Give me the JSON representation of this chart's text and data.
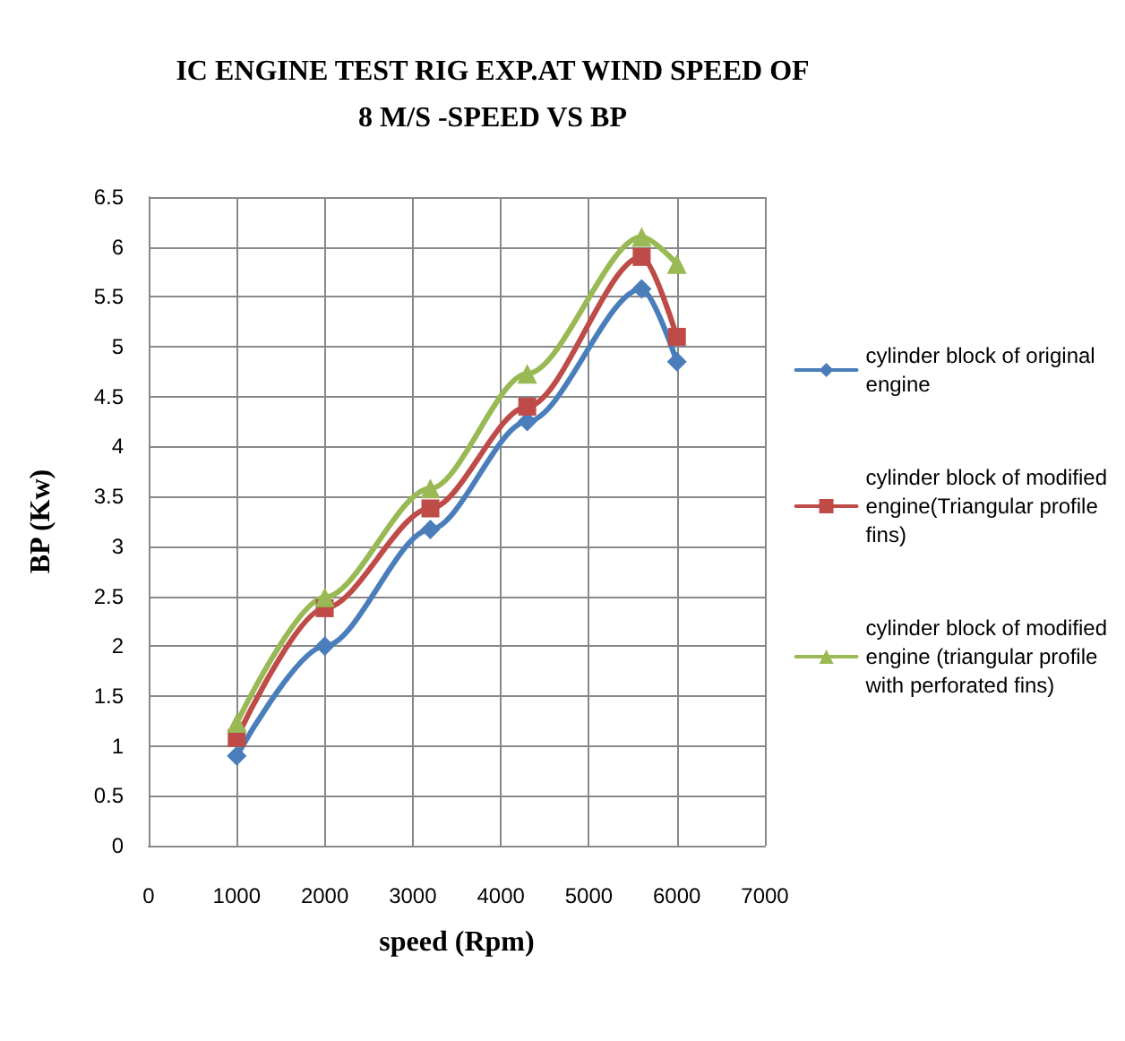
{
  "chart_data": {
    "type": "line",
    "title": "IC ENGINE TEST RIG EXP.AT WIND SPEED OF\n8 M/S -SPEED VS BP",
    "xlabel": "speed (Rpm)",
    "ylabel": "BP (Kw)",
    "x": [
      1000,
      2000,
      3200,
      4300,
      5600,
      6000
    ],
    "series": [
      {
        "name": "cylinder block of original\nengine",
        "color": "#4a7ebb",
        "marker": "diamond",
        "values": [
          0.9,
          2.0,
          3.17,
          4.25,
          5.58,
          4.85
        ]
      },
      {
        "name": "cylinder block of modified\nengine(Triangular profile\nfins)",
        "color": "#be4b48",
        "marker": "square",
        "values": [
          1.08,
          2.38,
          3.38,
          4.4,
          5.9,
          5.1
        ]
      },
      {
        "name": "cylinder block of modified\nengine (triangular profile\nwith perforated fins)",
        "color": "#98b954",
        "marker": "triangle",
        "values": [
          1.23,
          2.49,
          3.58,
          4.73,
          6.1,
          5.83
        ]
      }
    ],
    "xlim": [
      0,
      7000
    ],
    "xticks": [
      0,
      1000,
      2000,
      3000,
      4000,
      5000,
      6000,
      7000
    ],
    "ylim": [
      0,
      6.5
    ],
    "yticks": [
      0,
      0.5,
      1,
      1.5,
      2,
      2.5,
      3,
      3.5,
      4,
      4.5,
      5,
      5.5,
      6,
      6.5
    ],
    "grid": true,
    "legend": "right",
    "line_style": "solid"
  }
}
